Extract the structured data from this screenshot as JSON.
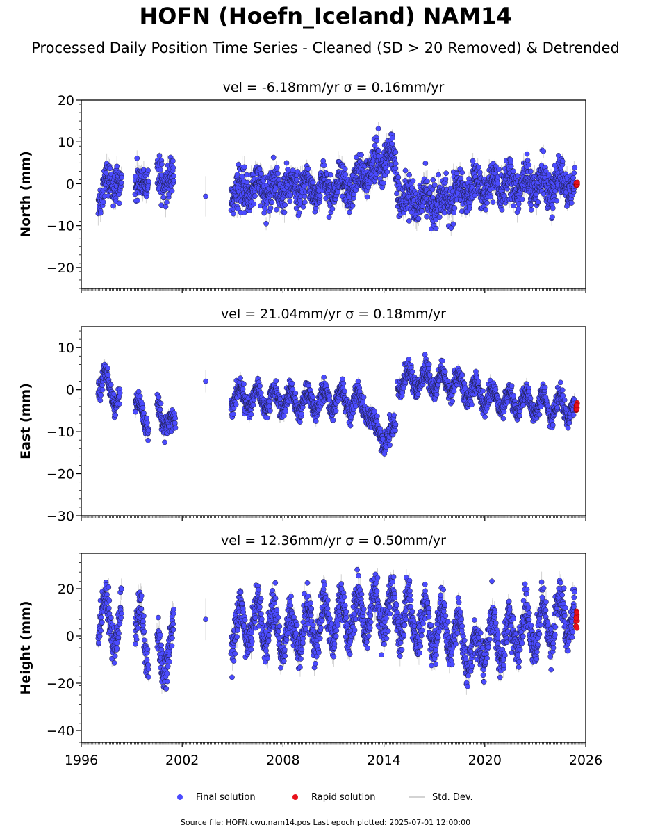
{
  "page": {
    "title": "HOFN (Hoefn_Iceland) NAM14",
    "subtitle": "Processed Daily Position Time Series - Cleaned (SD > 20 Removed) & Detrended",
    "footnote": "Source file: HOFN.cwu.nam14.pos  Last epoch plotted: 2025-07-01 12:00:00"
  },
  "legend": {
    "final_label": "Final solution",
    "rapid_label": "Rapid solution",
    "std_label": "Std. Dev."
  },
  "colors": {
    "final": "#4b4bff",
    "rapid": "#e8101a",
    "std_dev": "#c8c8c8",
    "marker_edge": "#1a1a3a"
  },
  "chart_data": [
    {
      "type": "scatter",
      "title": "vel = -6.18mm/yr   σ = 0.16mm/yr",
      "ylabel": "North (mm)",
      "xlim": [
        1996,
        2026
      ],
      "ylim": [
        -25,
        20
      ],
      "yticks": [
        -20,
        -10,
        0,
        10,
        20
      ],
      "xticks": [
        1996,
        2002,
        2008,
        2014,
        2020,
        2026
      ],
      "xtick_labels_shown": false,
      "segments": [
        {
          "x": [
            1997.0,
            1997.3,
            1997.6,
            1997.9,
            1998.1,
            1998.4
          ],
          "y": [
            -3.0,
            -2.0,
            0.5,
            0.5,
            0.0,
            -1.0
          ]
        },
        {
          "x": [
            1999.2,
            1999.4,
            1999.6,
            1999.8,
            2000.0
          ],
          "y": [
            -2.0,
            0.0,
            -1.0,
            1.0,
            1.5
          ]
        },
        {
          "x": [
            2000.5,
            2001.0,
            2001.5
          ],
          "y": [
            1.0,
            1.5,
            1.0
          ]
        },
        {
          "x": [
            2003.4
          ],
          "y": [
            -3.0
          ]
        },
        {
          "x": [
            2004.9,
            2006.0,
            2007.0,
            2008.0,
            2009.0,
            2010.0,
            2011.0,
            2012.0,
            2012.5,
            2013.0,
            2013.5,
            2014.0,
            2014.4,
            2014.7,
            2015.0,
            2016.0,
            2017.0,
            2018.0,
            2019.0,
            2020.0,
            2021.0,
            2022.0,
            2023.0,
            2024.0,
            2025.0,
            2025.35
          ],
          "y": [
            -2.0,
            -1.0,
            -1.0,
            -1.0,
            -1.0,
            -1.0,
            -1.0,
            -0.5,
            0.5,
            2.5,
            4.5,
            6.0,
            7.0,
            3.0,
            -3.0,
            -4.0,
            -4.5,
            -3.0,
            -1.5,
            -1.0,
            -0.5,
            -0.5,
            0.0,
            -0.5,
            0.0,
            0.0
          ]
        }
      ],
      "seasonal_amplitude": 2.0,
      "noise_sd": 2.2,
      "rapid": {
        "x": [
          2025.42,
          2025.5
        ],
        "y": [
          0.5,
          -0.5
        ]
      }
    },
    {
      "type": "scatter",
      "title": "vel = 21.04mm/yr   σ = 0.18mm/yr",
      "ylabel": "East (mm)",
      "xlim": [
        1996,
        2026
      ],
      "ylim": [
        -30,
        15
      ],
      "yticks": [
        -30,
        -20,
        -10,
        0,
        10
      ],
      "xticks": [
        1996,
        2002,
        2008,
        2014,
        2020,
        2026
      ],
      "xtick_labels_shown": false,
      "segments": [
        {
          "x": [
            1997.0,
            1997.5,
            1997.9,
            1998.3
          ],
          "y": [
            1.0,
            2.0,
            -1.0,
            -2.5
          ]
        },
        {
          "x": [
            1999.2,
            1999.6,
            2000.0
          ],
          "y": [
            -4.0,
            -6.0,
            -8.0
          ]
        },
        {
          "x": [
            2000.5,
            2001.0,
            2001.6
          ],
          "y": [
            -5.0,
            -7.0,
            -10.0
          ]
        },
        {
          "x": [
            2003.4
          ],
          "y": [
            2.0
          ]
        },
        {
          "x": [
            2004.9,
            2006.0,
            2007.0,
            2008.0,
            2009.0,
            2010.0,
            2011.0,
            2012.0,
            2013.0,
            2013.5,
            2014.0,
            2014.4,
            2014.7
          ],
          "y": [
            -1.5,
            -2.0,
            -2.5,
            -2.5,
            -3.0,
            -2.5,
            -2.5,
            -2.5,
            -4.0,
            -10.0,
            -11.0,
            -12.0,
            -10.0
          ]
        },
        {
          "x": [
            2014.8,
            2015.5,
            2016.0,
            2017.0,
            2018.0,
            2019.0,
            2020.0,
            2021.0,
            2022.0,
            2023.0,
            2024.0,
            2025.0,
            2025.35
          ],
          "y": [
            2.5,
            2.5,
            2.5,
            2.0,
            1.5,
            0.0,
            -1.5,
            -2.5,
            -3.0,
            -3.5,
            -4.0,
            -4.0,
            -4.5
          ]
        }
      ],
      "seasonal_amplitude": 2.5,
      "noise_sd": 1.2,
      "rapid": {
        "x": [
          2025.42,
          2025.5
        ],
        "y": [
          -3.0,
          -5.0
        ]
      }
    },
    {
      "type": "scatter",
      "title": "vel = 12.36mm/yr   σ = 0.50mm/yr",
      "ylabel": "Height (mm)",
      "xlim": [
        1996,
        2026
      ],
      "ylim": [
        -45,
        35
      ],
      "yticks": [
        -40,
        -20,
        0,
        20
      ],
      "xticks": [
        1996,
        2002,
        2008,
        2014,
        2020,
        2026
      ],
      "xtick_labels_shown": true,
      "segments": [
        {
          "x": [
            1997.0,
            1997.5,
            1998.0,
            1998.4
          ],
          "y": [
            10.0,
            8.0,
            6.0,
            5.0
          ]
        },
        {
          "x": [
            1999.2,
            1999.6,
            2000.0
          ],
          "y": [
            0.0,
            3.0,
            -5.0
          ]
        },
        {
          "x": [
            2000.5,
            2001.0,
            2001.5
          ],
          "y": [
            -8.0,
            -6.0,
            -5.0
          ]
        },
        {
          "x": [
            2003.4
          ],
          "y": [
            7.0
          ]
        },
        {
          "x": [
            2004.9,
            2006.0,
            2007.0,
            2008.0,
            2009.0,
            2010.0,
            2011.0,
            2012.0,
            2013.0,
            2014.0,
            2015.0,
            2016.0,
            2017.0,
            2018.0,
            2019.0,
            2019.5,
            2020.0,
            2021.0,
            2022.0,
            2023.0,
            2024.0,
            2025.0,
            2025.35
          ],
          "y": [
            3.0,
            5.0,
            5.0,
            0.0,
            2.0,
            5.0,
            7.0,
            8.0,
            10.0,
            10.0,
            9.0,
            6.0,
            4.0,
            2.0,
            -5.0,
            -10.0,
            0.0,
            -2.0,
            2.0,
            3.0,
            6.0,
            10.0,
            8.0
          ]
        }
      ],
      "seasonal_amplitude": 9.0,
      "noise_sd": 4.0,
      "rapid": {
        "x": [
          2025.42,
          2025.5
        ],
        "y": [
          2.0,
          11.0
        ]
      }
    }
  ]
}
